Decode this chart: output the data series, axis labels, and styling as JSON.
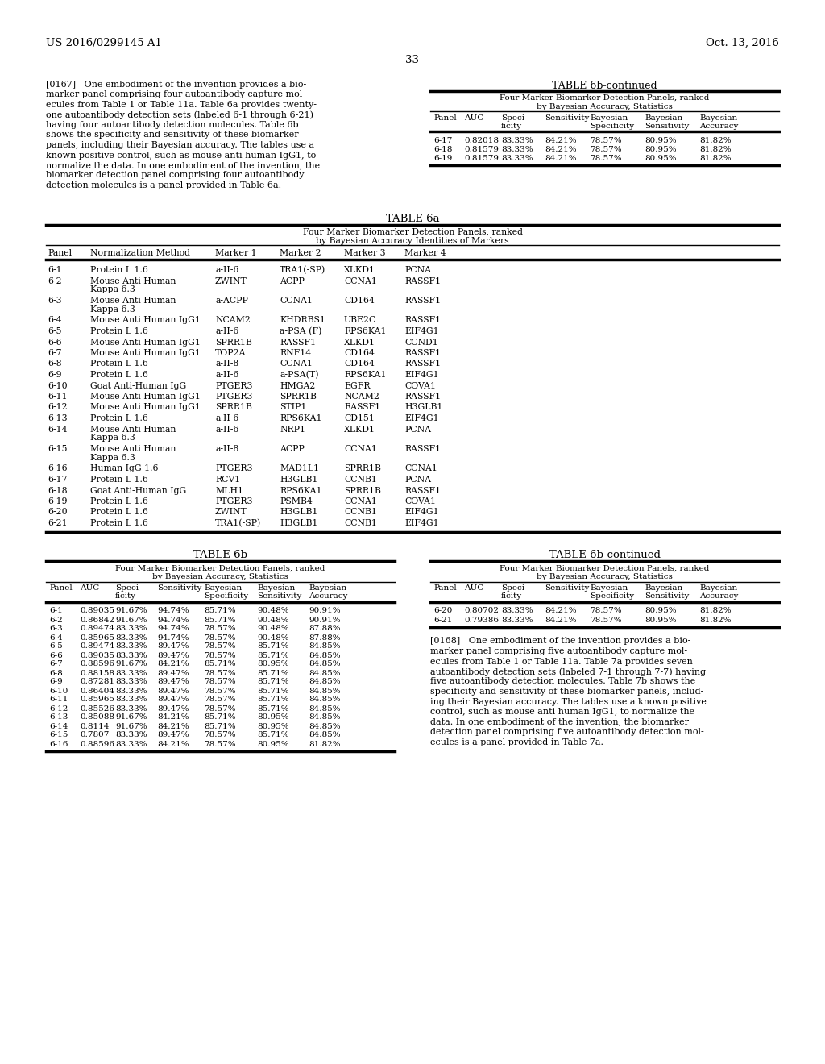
{
  "page_number": "33",
  "patent_left": "US 2016/0299145 A1",
  "patent_right": "Oct. 13, 2016",
  "background_color": "#ffffff",
  "text_color": "#000000",
  "table6a_title": "TABLE 6a",
  "table6a_subtitle1": "Four Marker Biomarker Detection Panels, ranked",
  "table6a_subtitle2": "by Bayesian Accuracy Identities of Markers",
  "table6a_rows": [
    [
      "6-1",
      "Protein L 1.6",
      "a-II-6",
      "TRA1(-SP)",
      "XLKD1",
      "PCNA"
    ],
    [
      "6-2",
      "Mouse Anti Human\nKappa 6.3",
      "ZWINT",
      "ACPP",
      "CCNA1",
      "RASSF1"
    ],
    [
      "6-3",
      "Mouse Anti Human\nKappa 6.3",
      "a-ACPP",
      "CCNA1",
      "CD164",
      "RASSF1"
    ],
    [
      "6-4",
      "Mouse Anti Human IgG1",
      "NCAM2",
      "KHDRBS1",
      "UBE2C",
      "RASSF1"
    ],
    [
      "6-5",
      "Protein L 1.6",
      "a-II-6",
      "a-PSA (F)",
      "RPS6KA1",
      "EIF4G1"
    ],
    [
      "6-6",
      "Mouse Anti Human IgG1",
      "SPRR1B",
      "RASSF1",
      "XLKD1",
      "CCND1"
    ],
    [
      "6-7",
      "Mouse Anti Human IgG1",
      "TOP2A",
      "RNF14",
      "CD164",
      "RASSF1"
    ],
    [
      "6-8",
      "Protein L 1.6",
      "a-II-8",
      "CCNA1",
      "CD164",
      "RASSF1"
    ],
    [
      "6-9",
      "Protein L 1.6",
      "a-II-6",
      "a-PSA(T)",
      "RPS6KA1",
      "EIF4G1"
    ],
    [
      "6-10",
      "Goat Anti-Human IgG",
      "PTGER3",
      "HMGA2",
      "EGFR",
      "COVA1"
    ],
    [
      "6-11",
      "Mouse Anti Human IgG1",
      "PTGER3",
      "SPRR1B",
      "NCAM2",
      "RASSF1"
    ],
    [
      "6-12",
      "Mouse Anti Human IgG1",
      "SPRR1B",
      "STIP1",
      "RASSF1",
      "H3GLB1"
    ],
    [
      "6-13",
      "Protein L 1.6",
      "a-II-6",
      "RPS6KA1",
      "CD151",
      "EIF4G1"
    ],
    [
      "6-14",
      "Mouse Anti Human\nKappa 6.3",
      "a-II-6",
      "NRP1",
      "XLKD1",
      "PCNA"
    ],
    [
      "6-15",
      "Mouse Anti Human\nKappa 6.3",
      "a-II-8",
      "ACPP",
      "CCNA1",
      "RASSF1"
    ],
    [
      "6-16",
      "Human IgG 1.6",
      "PTGER3",
      "MAD1L1",
      "SPRR1B",
      "CCNA1"
    ],
    [
      "6-17",
      "Protein L 1.6",
      "RCV1",
      "H3GLB1",
      "CCNB1",
      "PCNA"
    ],
    [
      "6-18",
      "Goat Anti-Human IgG",
      "MLH1",
      "RPS6KA1",
      "SPRR1B",
      "RASSF1"
    ],
    [
      "6-19",
      "Protein L 1.6",
      "PTGER3",
      "PSMB4",
      "CCNA1",
      "COVA1"
    ],
    [
      "6-20",
      "Protein L 1.6",
      "ZWINT",
      "H3GLB1",
      "CCNB1",
      "EIF4G1"
    ],
    [
      "6-21",
      "Protein L 1.6",
      "TRA1(-SP)",
      "H3GLB1",
      "CCNB1",
      "EIF4G1"
    ]
  ],
  "table6b_title": "TABLE 6b",
  "table6b_cont_title": "TABLE 6b-continued",
  "table6b_subtitle1": "Four Marker Biomarker Detection Panels, ranked",
  "table6b_subtitle2": "by Bayesian Accuracy, Statistics",
  "table6b_rows": [
    [
      "6-1",
      "0.89035",
      "91.67%",
      "94.74%",
      "85.71%",
      "90.48%",
      "90.91%"
    ],
    [
      "6-2",
      "0.86842",
      "91.67%",
      "94.74%",
      "85.71%",
      "90.48%",
      "90.91%"
    ],
    [
      "6-3",
      "0.89474",
      "83.33%",
      "94.74%",
      "78.57%",
      "90.48%",
      "87.88%"
    ],
    [
      "6-4",
      "0.85965",
      "83.33%",
      "94.74%",
      "78.57%",
      "90.48%",
      "87.88%"
    ],
    [
      "6-5",
      "0.89474",
      "83.33%",
      "89.47%",
      "78.57%",
      "85.71%",
      "84.85%"
    ],
    [
      "6-6",
      "0.89035",
      "83.33%",
      "89.47%",
      "78.57%",
      "85.71%",
      "84.85%"
    ],
    [
      "6-7",
      "0.88596",
      "91.67%",
      "84.21%",
      "85.71%",
      "80.95%",
      "84.85%"
    ],
    [
      "6-8",
      "0.88158",
      "83.33%",
      "89.47%",
      "78.57%",
      "85.71%",
      "84.85%"
    ],
    [
      "6-9",
      "0.87281",
      "83.33%",
      "89.47%",
      "78.57%",
      "85.71%",
      "84.85%"
    ],
    [
      "6-10",
      "0.86404",
      "83.33%",
      "89.47%",
      "78.57%",
      "85.71%",
      "84.85%"
    ],
    [
      "6-11",
      "0.85965",
      "83.33%",
      "89.47%",
      "78.57%",
      "85.71%",
      "84.85%"
    ],
    [
      "6-12",
      "0.85526",
      "83.33%",
      "89.47%",
      "78.57%",
      "85.71%",
      "84.85%"
    ],
    [
      "6-13",
      "0.85088",
      "91.67%",
      "84.21%",
      "85.71%",
      "80.95%",
      "84.85%"
    ],
    [
      "6-14",
      "0.8114",
      "91.67%",
      "84.21%",
      "85.71%",
      "80.95%",
      "84.85%"
    ],
    [
      "6-15",
      "0.7807",
      "83.33%",
      "89.47%",
      "78.57%",
      "85.71%",
      "84.85%"
    ],
    [
      "6-16",
      "0.88596",
      "83.33%",
      "84.21%",
      "78.57%",
      "80.95%",
      "81.82%"
    ]
  ],
  "table6b_cont_top_rows": [
    [
      "6-17",
      "0.82018",
      "83.33%",
      "84.21%",
      "78.57%",
      "80.95%",
      "81.82%"
    ],
    [
      "6-18",
      "0.81579",
      "83.33%",
      "84.21%",
      "78.57%",
      "80.95%",
      "81.82%"
    ],
    [
      "6-19",
      "0.81579",
      "83.33%",
      "84.21%",
      "78.57%",
      "80.95%",
      "81.82%"
    ]
  ],
  "table6b_cont_bottom_rows": [
    [
      "6-20",
      "0.80702",
      "83.33%",
      "84.21%",
      "78.57%",
      "80.95%",
      "81.82%"
    ],
    [
      "6-21",
      "0.79386",
      "83.33%",
      "84.21%",
      "78.57%",
      "80.95%",
      "81.82%"
    ]
  ],
  "para167_lines": [
    "[0167]   One embodiment of the invention provides a bio-",
    "marker panel comprising four autoantibody capture mol-",
    "ecules from Table 1 or Table 11a. Table 6a provides twenty-",
    "one autoantibody detection sets (labeled 6-1 through 6-21)",
    "having four autoantibody detection molecules. Table 6b",
    "shows the specificity and sensitivity of these biomarker",
    "panels, including their Bayesian accuracy. The tables use a",
    "known positive control, such as mouse anti human IgG1, to",
    "normalize the data. In one embodiment of the invention, the",
    "biomarker detection panel comprising four autoantibody",
    "detection molecules is a panel provided in Table 6a."
  ],
  "para168_lines": [
    "[0168]   One embodiment of the invention provides a bio-",
    "marker panel comprising five autoantibody capture mol-",
    "ecules from Table 1 or Table 11a. Table 7a provides seven",
    "autoantibody detection sets (labeled 7-1 through 7-7) having",
    "five autoantibody detection molecules. Table 7b shows the",
    "specificity and sensitivity of these biomarker panels, includ-",
    "ing their Bayesian accuracy. The tables use a known positive",
    "control, such as mouse anti human IgG1, to normalize the",
    "data. In one embodiment of the invention, the biomarker",
    "detection panel comprising five autoantibody detection mol-",
    "ecules is a panel provided in Table 7a."
  ]
}
